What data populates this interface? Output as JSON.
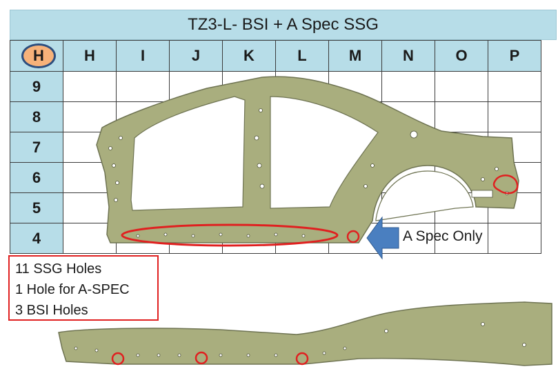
{
  "title": "TZ3-L- BSI + A Spec SSG",
  "corner_badge": "H",
  "columns": [
    "H",
    "I",
    "J",
    "K",
    "L",
    "M",
    "N",
    "O",
    "P"
  ],
  "rows": [
    "9",
    "8",
    "7",
    "6",
    "5",
    "4"
  ],
  "callout": "A Spec Only",
  "legend": {
    "line1": "11 SSG Holes",
    "line2": "1 Hole for A-SPEC",
    "line3": "3 BSI Holes"
  },
  "colors": {
    "panel": "#a9ae7e",
    "panel_edge": "#6e7352",
    "marker": "#e02020",
    "arrow": "#4a7fc0",
    "header_fill": "#b7dde8",
    "badge_fill": "#f7b27a"
  }
}
